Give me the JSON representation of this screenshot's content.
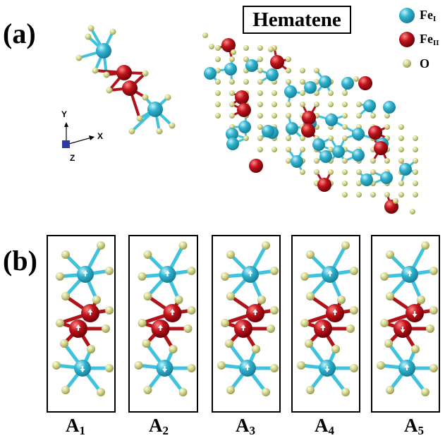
{
  "panel_a": {
    "label": "(a)",
    "title": "Hematene"
  },
  "panel_b": {
    "label": "(b)"
  },
  "legend": [
    {
      "symbol": "Fe",
      "sub": "I",
      "color": "#2fb3cf"
    },
    {
      "symbol": "Fe",
      "sub": "II",
      "color": "#c0141c"
    },
    {
      "symbol": "O",
      "sub": "",
      "color": "#d4d690"
    }
  ],
  "axes": {
    "y": "Y",
    "x": "X",
    "z": "Z"
  },
  "configurations": [
    {
      "base": "A",
      "sub": "1",
      "spins": [
        "up",
        "up",
        "up",
        "down"
      ]
    },
    {
      "base": "A",
      "sub": "2",
      "spins": [
        "up",
        "up",
        "up",
        "down"
      ]
    },
    {
      "base": "A",
      "sub": "3",
      "spins": [
        "up",
        "up",
        "up",
        "up"
      ]
    },
    {
      "base": "A",
      "sub": "4",
      "spins": [
        "up",
        "up",
        "up",
        "down"
      ]
    },
    {
      "base": "A",
      "sub": "5",
      "spins": [
        "up",
        "down",
        "down",
        "up"
      ]
    }
  ],
  "colors": {
    "fe1": "#2fb3cf",
    "fe1_bond": "#3fc2dd",
    "fe2": "#c0141c",
    "fe2_bond": "#b0121a",
    "o": "#d4d690",
    "o_edge": "#b3b56a"
  }
}
